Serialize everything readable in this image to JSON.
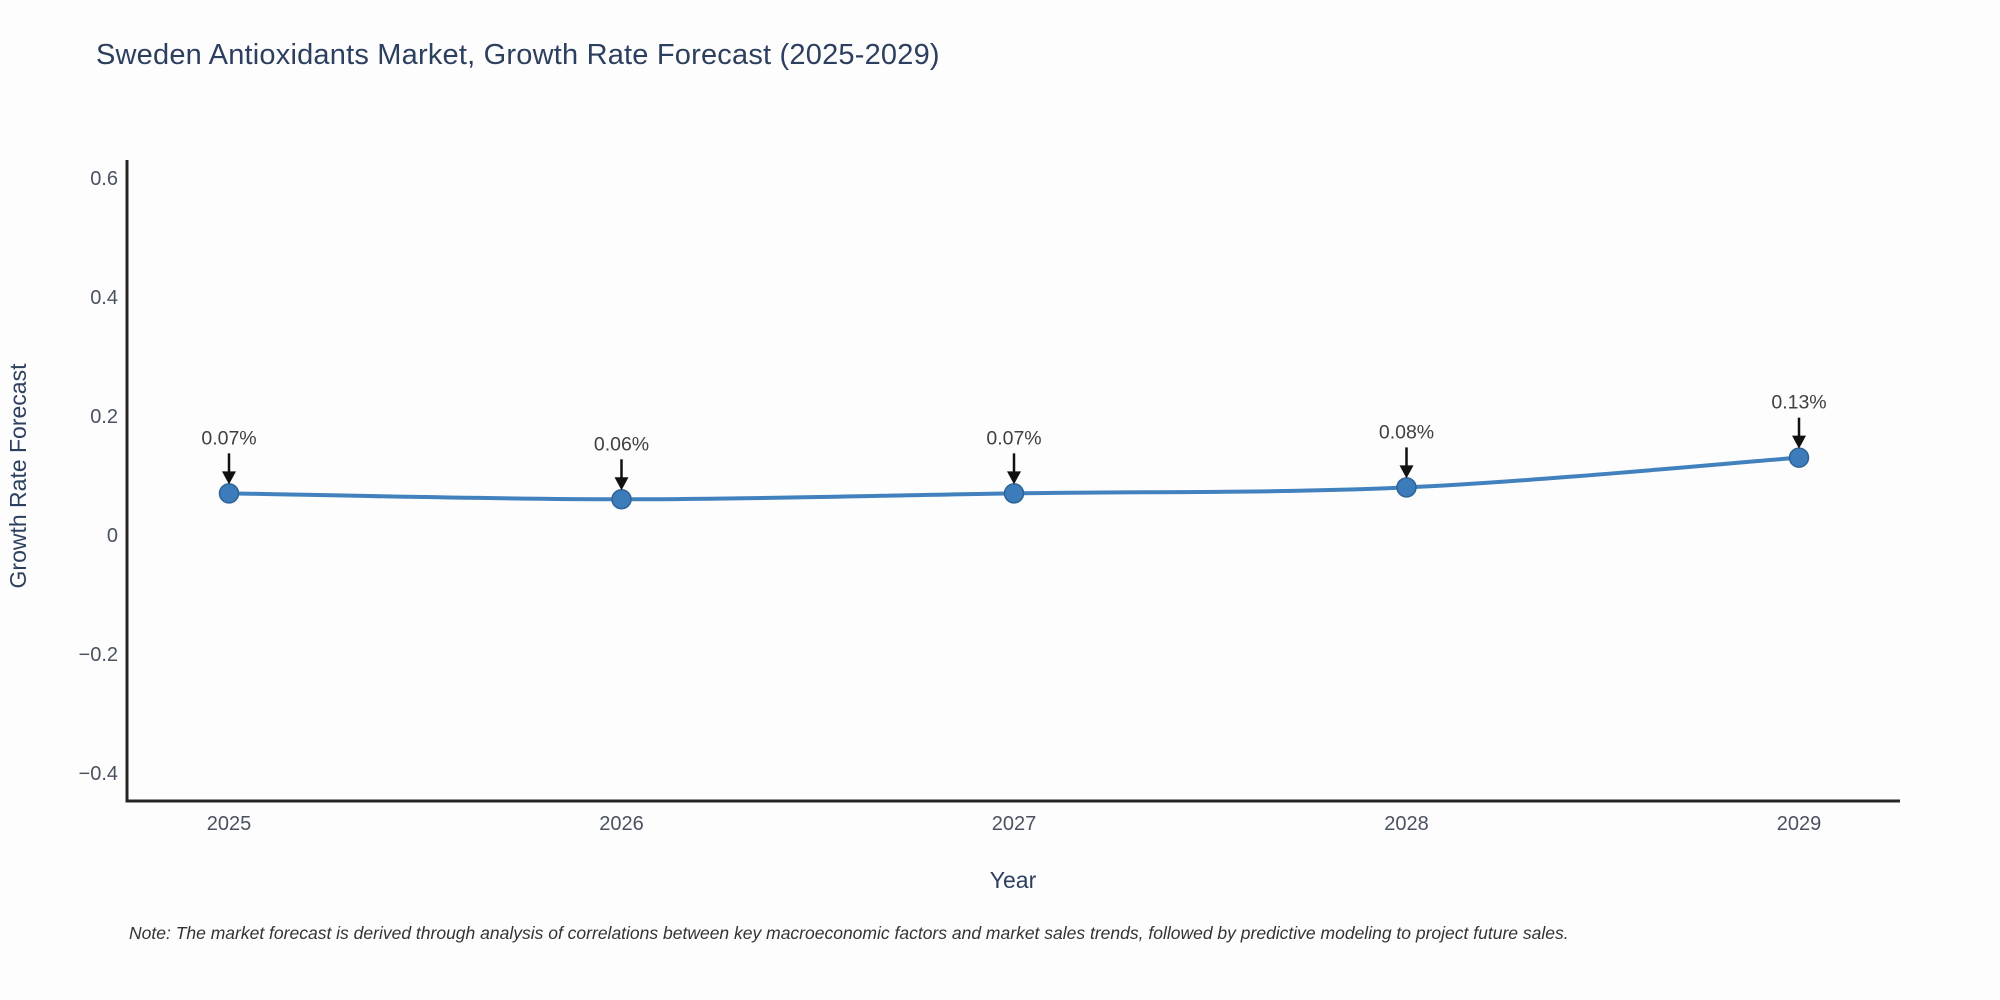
{
  "page": {
    "title": "Sweden Antioxidants Market, Growth Rate Forecast (2025-2029)",
    "note": "Note: The market forecast is derived through analysis of correlations between key macroeconomic factors and market sales trends, followed by predictive modeling to project future sales."
  },
  "chart_data": {
    "type": "line",
    "title": "Sweden Antioxidants Market, Growth Rate Forecast (2025-2029)",
    "x": [
      2025,
      2026,
      2027,
      2028,
      2029
    ],
    "series": [
      {
        "name": "Growth Rate Forecast",
        "values": [
          0.07,
          0.06,
          0.07,
          0.08,
          0.13
        ]
      }
    ],
    "point_labels": [
      "0.07%",
      "0.06%",
      "0.07%",
      "0.08%",
      "0.13%"
    ],
    "x_tick_labels": [
      "2025",
      "2026",
      "2027",
      "2028",
      "2029"
    ],
    "y_ticks": [
      0.6,
      0.4,
      0.2,
      0,
      -0.2,
      -0.4
    ],
    "y_tick_labels": [
      "0.6",
      "0.4",
      "0.2",
      "0",
      "−0.2",
      "−0.4"
    ],
    "xlabel": "Year",
    "ylabel": "Growth Rate Forecast",
    "ylim": [
      -0.447,
      0.63
    ],
    "grid": false,
    "legend": "none",
    "line_shape": "spline",
    "annotation_arrows": true,
    "colors": {
      "line": "#4181bd",
      "marker_fill": "#3d7cba",
      "marker_stroke": "#2e6397",
      "axis": "#262626",
      "arrow": "#111111",
      "title_text": "#2d3f5f",
      "tick_text": "#4a5260",
      "annotation_text": "#404040",
      "note_text": "#333333",
      "background": "#ffffff"
    }
  }
}
